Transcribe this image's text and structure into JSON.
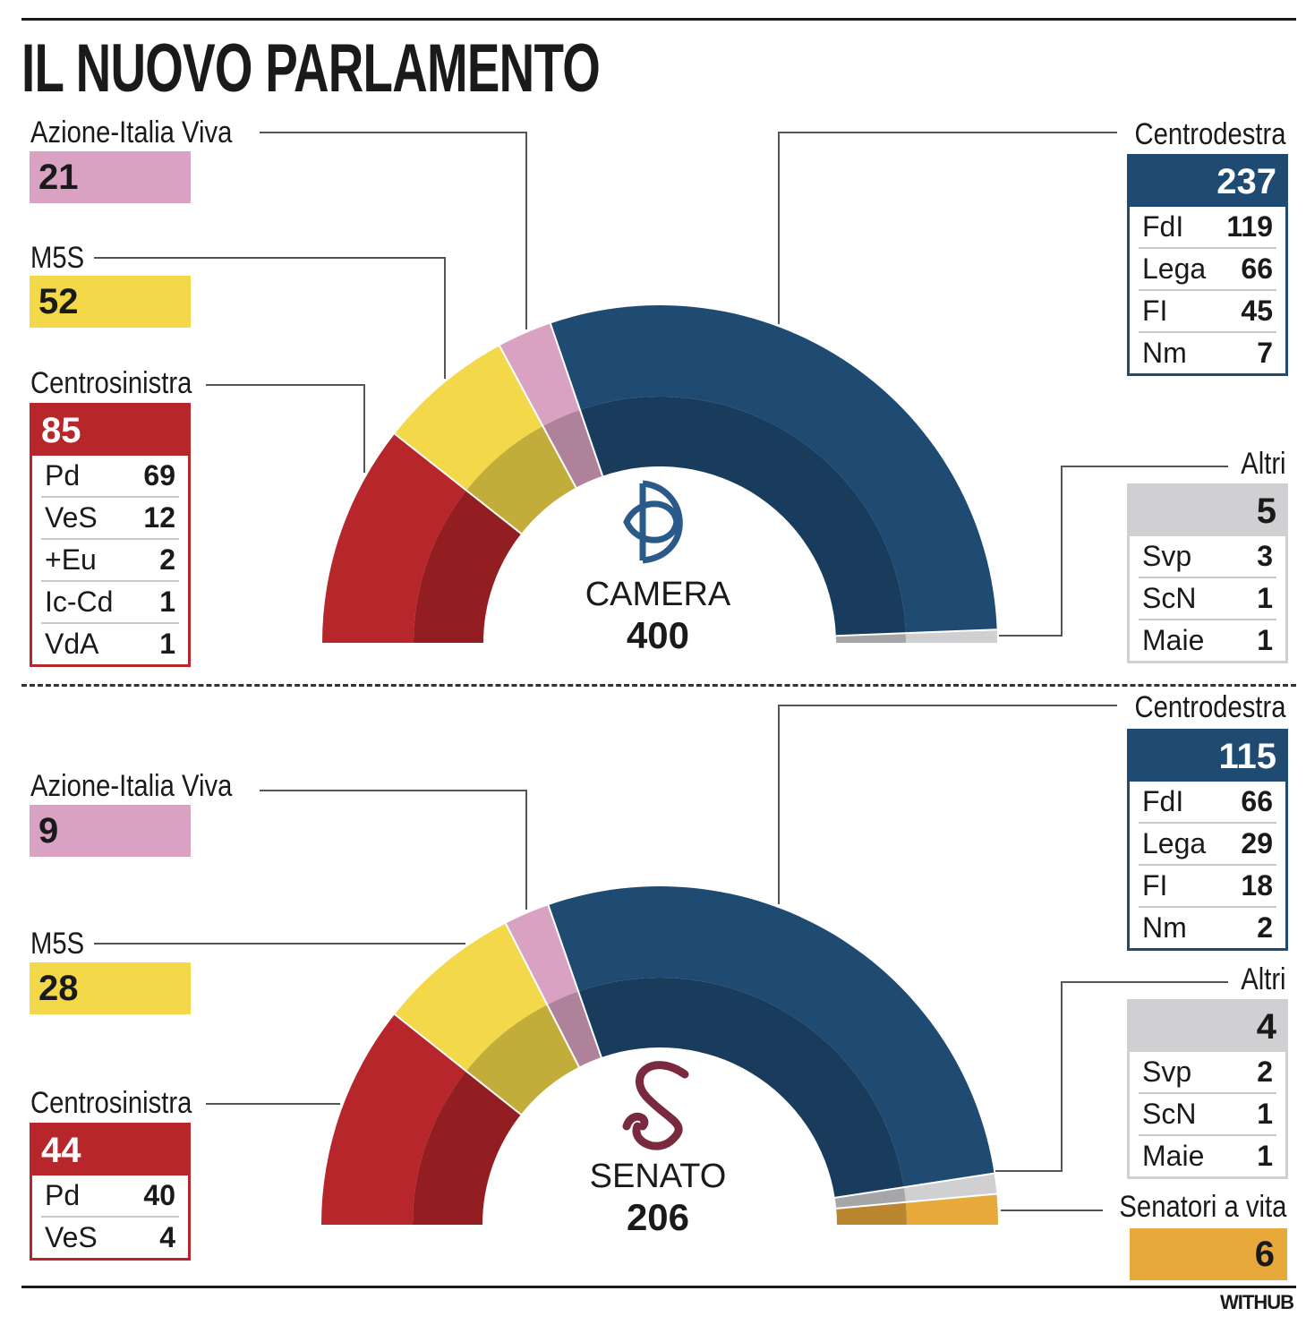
{
  "title": "IL NUOVO PARLAMENTO",
  "brand": "WITHUB",
  "colors": {
    "centrodestra": "#1f4b73",
    "centrosinistra": "#b7262b",
    "m5s": "#f3d84a",
    "azione": "#d9a2c2",
    "altri": "#d0d0d2",
    "senatori": "#e8a93c"
  },
  "chart_data": [
    {
      "type": "parliament-semicircle",
      "chamber": "CAMERA",
      "total": "400",
      "icon": "camera-emblem-icon",
      "series": [
        {
          "name": "Centrosinistra",
          "value": 85,
          "parties": [
            {
              "name": "Pd",
              "value": 69
            },
            {
              "name": "VeS",
              "value": 12
            },
            {
              "name": "+Eu",
              "value": 2
            },
            {
              "name": "Ic-Cd",
              "value": 1
            },
            {
              "name": "VdA",
              "value": 1
            }
          ]
        },
        {
          "name": "M5S",
          "value": 52
        },
        {
          "name": "Azione-Italia Viva",
          "value": 21
        },
        {
          "name": "Centrodestra",
          "value": 237,
          "parties": [
            {
              "name": "FdI",
              "value": 119
            },
            {
              "name": "Lega",
              "value": 66
            },
            {
              "name": "FI",
              "value": 45
            },
            {
              "name": "Nm",
              "value": 7
            }
          ]
        },
        {
          "name": "Altri",
          "value": 5,
          "parties": [
            {
              "name": "Svp",
              "value": 3
            },
            {
              "name": "ScN",
              "value": 1
            },
            {
              "name": "Maie",
              "value": 1
            }
          ]
        }
      ]
    },
    {
      "type": "parliament-semicircle",
      "chamber": "SENATO",
      "total": "206",
      "icon": "senato-emblem-icon",
      "series": [
        {
          "name": "Centrosinistra",
          "value": 44,
          "parties": [
            {
              "name": "Pd",
              "value": 40
            },
            {
              "name": "VeS",
              "value": 4
            }
          ]
        },
        {
          "name": "M5S",
          "value": 28
        },
        {
          "name": "Azione-Italia Viva",
          "value": 9
        },
        {
          "name": "Centrodestra",
          "value": 115,
          "parties": [
            {
              "name": "FdI",
              "value": 66
            },
            {
              "name": "Lega",
              "value": 29
            },
            {
              "name": "FI",
              "value": 18
            },
            {
              "name": "Nm",
              "value": 2
            }
          ]
        },
        {
          "name": "Altri",
          "value": 4,
          "parties": [
            {
              "name": "Svp",
              "value": 2
            },
            {
              "name": "ScN",
              "value": 1
            },
            {
              "name": "Maie",
              "value": 1
            }
          ]
        },
        {
          "name": "Senatori a vita",
          "value": 6
        }
      ]
    }
  ]
}
